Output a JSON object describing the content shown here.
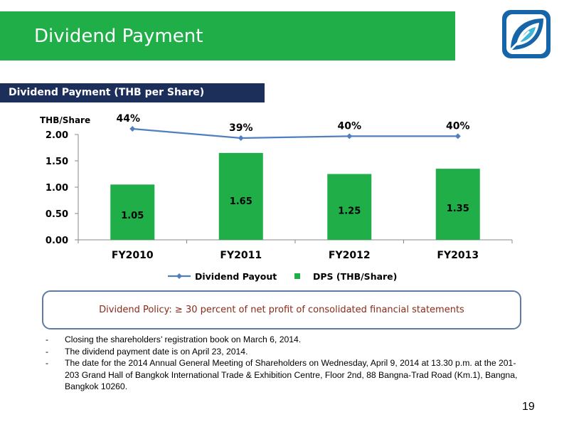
{
  "header": {
    "title": "Dividend Payment"
  },
  "section": {
    "title": "Dividend Payment (THB per Share)"
  },
  "colors": {
    "bar": "#1fae48",
    "line": "#4f7fc0",
    "header_green": "#1fae48",
    "subtitle_bg": "#1b2f5a",
    "policy_text": "#8a2a18"
  },
  "chart_data": {
    "type": "bar",
    "categories": [
      "FY2010",
      "FY2011",
      "FY2012",
      "FY2013"
    ],
    "series": [
      {
        "name": "DPS (THB/Share)",
        "type": "bar",
        "values": [
          1.05,
          1.65,
          1.25,
          1.35
        ],
        "labels": [
          "1.05",
          "1.65",
          "1.25",
          "1.35"
        ]
      },
      {
        "name": "Dividend Payout",
        "type": "line",
        "values": [
          44,
          39,
          40,
          40
        ],
        "labels": [
          "44%",
          "39%",
          "40%",
          "40%"
        ]
      }
    ],
    "ylabel": "THB/Share",
    "ylim": [
      0,
      2.0
    ],
    "yticks": [
      "0.00",
      "0.50",
      "1.00",
      "1.50",
      "2.00"
    ],
    "legend": "bottom"
  },
  "policy": {
    "text": "Dividend Policy: ≥ 30 percent of net profit of consolidated financial statements"
  },
  "notes": [
    {
      "dash": "-",
      "text": "Closing the shareholders’ registration book on March 6, 2014."
    },
    {
      "dash": "-",
      "text": "The dividend payment date is on April 23, 2014."
    },
    {
      "dash": "-",
      "text": "The date for the 2014 Annual General Meeting of Shareholders on Wednesday, April 9, 2014 at 13.30 p.m. at the 201-203 Grand Hall of Bangkok International Trade & Exhibition Centre, Floor 2nd, 88 Bangna-Trad Road (Km.1), Bangna, Bangkok 10260."
    }
  ],
  "page": {
    "number": "19"
  }
}
